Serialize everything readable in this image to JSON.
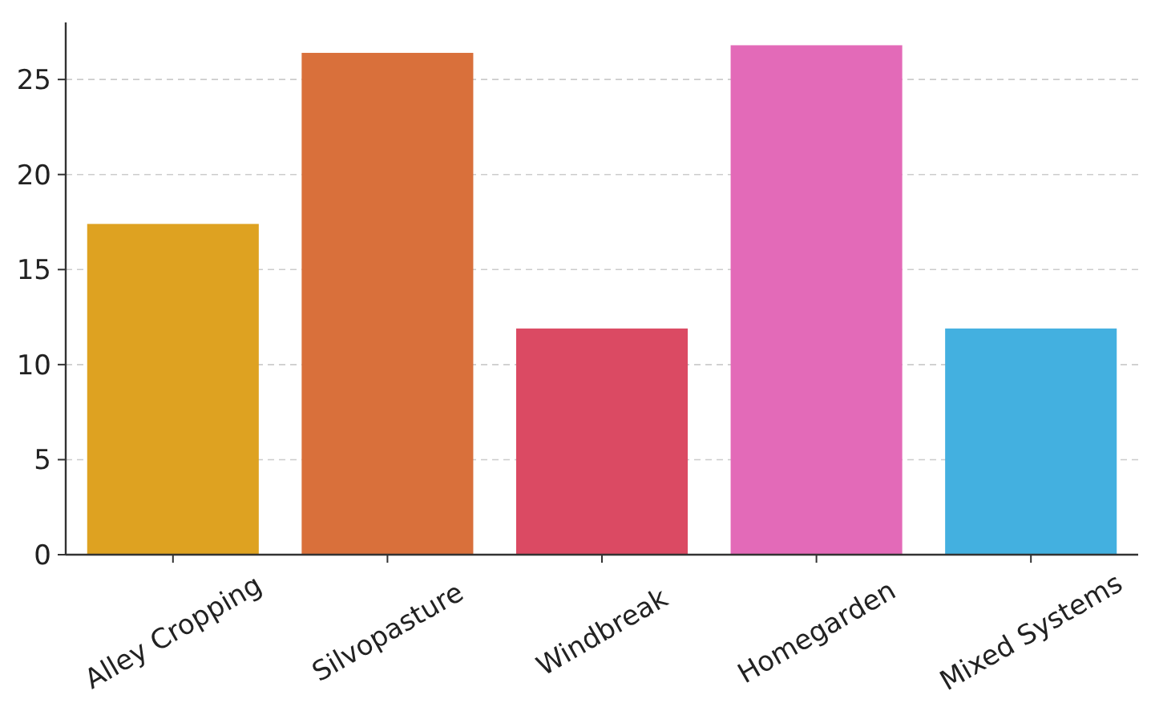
{
  "chart_data": {
    "type": "bar",
    "categories": [
      "Alley Cropping",
      "Silvopasture",
      "Windbreak",
      "Homegarden",
      "Mixed Systems"
    ],
    "values": [
      17.4,
      26.4,
      11.9,
      26.8,
      11.9
    ],
    "colors": [
      "#dea221",
      "#d9703b",
      "#db4a63",
      "#e36ab8",
      "#43b0e0"
    ],
    "ylim": [
      0,
      28
    ],
    "yticks": [
      0,
      5,
      10,
      15,
      20,
      25
    ],
    "grid": "y"
  }
}
